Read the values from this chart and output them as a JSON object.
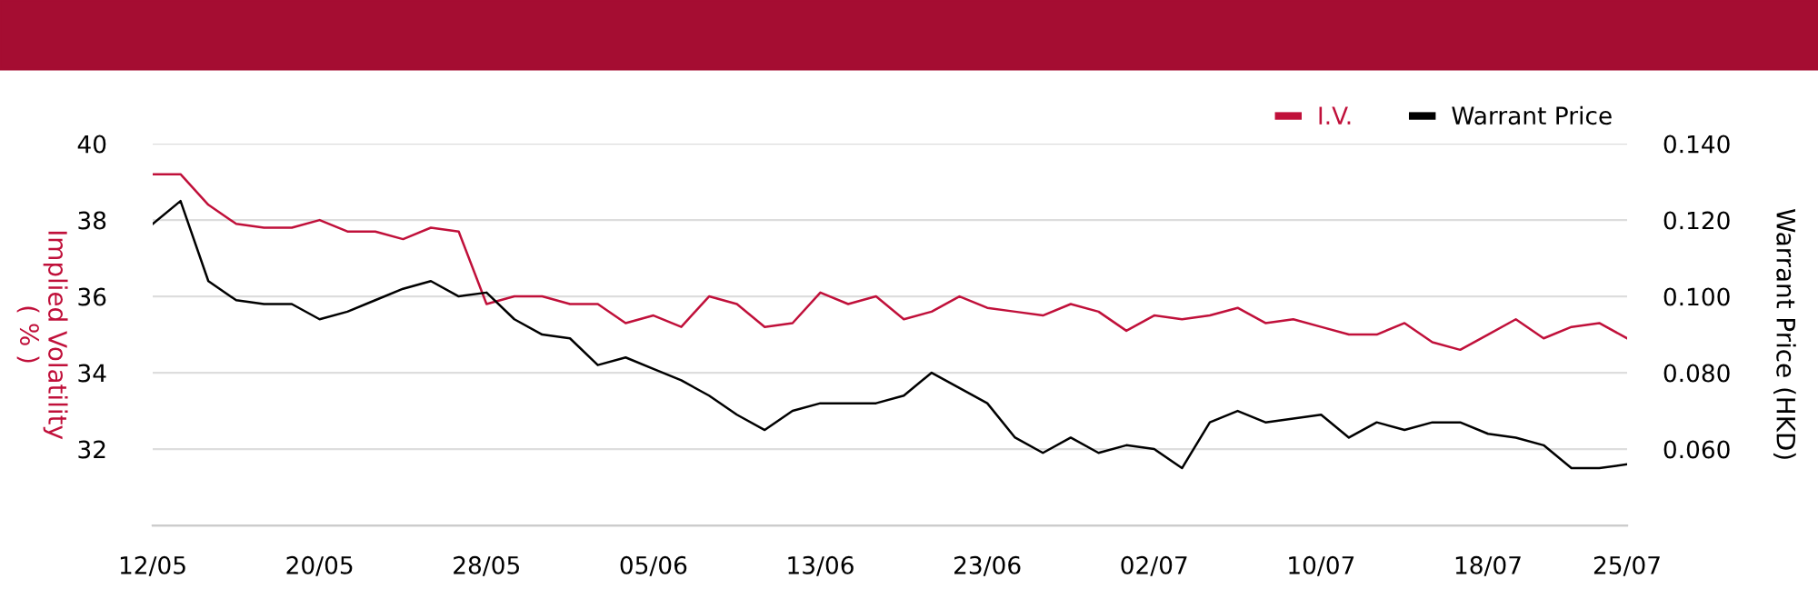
{
  "chart_data": {
    "type": "line",
    "categories": [
      "12/05",
      null,
      null,
      null,
      null,
      null,
      "20/05",
      null,
      null,
      null,
      null,
      null,
      "28/05",
      null,
      null,
      null,
      null,
      null,
      "05/06",
      null,
      null,
      null,
      null,
      null,
      "13/06",
      null,
      null,
      null,
      null,
      null,
      "23/06",
      null,
      null,
      null,
      null,
      null,
      "02/07",
      null,
      null,
      null,
      null,
      null,
      "10/07",
      null,
      null,
      null,
      null,
      null,
      "18/07",
      null,
      null,
      null,
      null,
      "25/07"
    ],
    "series": [
      {
        "name": "I.V.",
        "color": "#c0103a",
        "values": [
          39.2,
          39.2,
          38.4,
          37.9,
          37.8,
          37.8,
          38.0,
          37.7,
          37.7,
          37.5,
          37.8,
          37.7,
          35.8,
          36.0,
          36.0,
          35.8,
          35.8,
          35.3,
          35.5,
          35.2,
          36.0,
          35.8,
          35.2,
          35.3,
          36.1,
          35.8,
          36.0,
          35.4,
          35.6,
          36.0,
          35.7,
          35.6,
          35.5,
          35.8,
          35.6,
          35.1,
          35.5,
          35.4,
          35.5,
          35.7,
          35.3,
          35.4,
          35.2,
          35.0,
          35.0,
          35.3,
          34.8,
          34.6,
          35.0,
          35.4,
          34.9,
          35.2,
          35.3,
          34.9
        ]
      },
      {
        "name": "Warrant Price",
        "color": "#000000",
        "axis": "y2",
        "values": [
          0.119,
          0.125,
          0.104,
          0.099,
          0.098,
          0.098,
          0.094,
          0.096,
          0.099,
          0.102,
          0.104,
          0.1,
          0.101,
          0.094,
          0.09,
          0.089,
          0.082,
          0.084,
          0.081,
          0.078,
          0.074,
          0.069,
          0.065,
          0.07,
          0.072,
          0.072,
          0.072,
          0.074,
          0.08,
          0.076,
          0.072,
          0.063,
          0.059,
          0.063,
          0.059,
          0.061,
          0.06,
          0.055,
          0.067,
          0.07,
          0.067,
          0.068,
          0.069,
          0.063,
          0.067,
          0.065,
          0.067,
          0.067,
          0.064,
          0.063,
          0.061,
          0.055,
          0.055,
          0.056
        ]
      }
    ],
    "ylabel": "Implied Volatility\n( % )",
    "y2label": "Warrant Price (HKD)",
    "ylim": [
      30,
      40
    ],
    "yticks": [
      32,
      34,
      36,
      38,
      40
    ],
    "y2lim": [
      0.04,
      0.14
    ],
    "y2ticks": [
      {
        "value": 0.06,
        "label": "0.060"
      },
      {
        "value": 0.08,
        "label": "0.080"
      },
      {
        "value": 0.1,
        "label": "0.100"
      },
      {
        "value": 0.12,
        "label": "0.120"
      },
      {
        "value": 0.14,
        "label": "0.140"
      }
    ],
    "grid": "y",
    "legend": "top right",
    "marker": "none",
    "line_style": "solid"
  }
}
